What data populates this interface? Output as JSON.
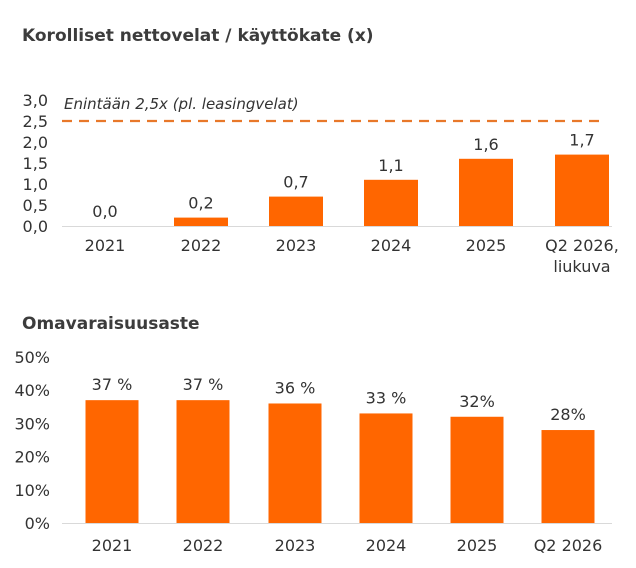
{
  "chart_data": [
    {
      "type": "bar",
      "title": "Korolliset nettovelat / käyttökate (x)",
      "categories": [
        [
          "2021"
        ],
        [
          "2022"
        ],
        [
          "2023"
        ],
        [
          "2024"
        ],
        [
          "2025"
        ],
        [
          "Q2 2026,",
          "liukuva"
        ]
      ],
      "values": [
        0.0,
        0.2,
        0.7,
        1.1,
        1.6,
        1.7
      ],
      "value_labels": [
        "0,0",
        "0,2",
        "0,7",
        "1,1",
        "1,6",
        "1,7"
      ],
      "yticks": [
        "0,0",
        "0,5",
        "1,0",
        "1,5",
        "2,0",
        "2,5",
        "3,0"
      ],
      "ylim": [
        0,
        3
      ],
      "reference_line": {
        "value": 2.5,
        "label": "Enintään 2,5x (pl. leasingvelat)",
        "style": "dashed"
      },
      "grid": false,
      "bar_color": "#ff6600"
    },
    {
      "type": "bar",
      "title": "Omavaraisuusaste",
      "categories": [
        [
          "2021"
        ],
        [
          "2022"
        ],
        [
          "2023"
        ],
        [
          "2024"
        ],
        [
          "2025"
        ],
        [
          "Q2 2026"
        ]
      ],
      "values": [
        37,
        37,
        36,
        33,
        32,
        28
      ],
      "value_labels": [
        "37 %",
        "37 %",
        "36 %",
        "33 %",
        "32%",
        "28%"
      ],
      "yticks": [
        "0%",
        "10%",
        "20%",
        "30%",
        "40%",
        "50%"
      ],
      "ylim": [
        0,
        50
      ],
      "grid": false,
      "bar_color": "#ff6600"
    }
  ]
}
